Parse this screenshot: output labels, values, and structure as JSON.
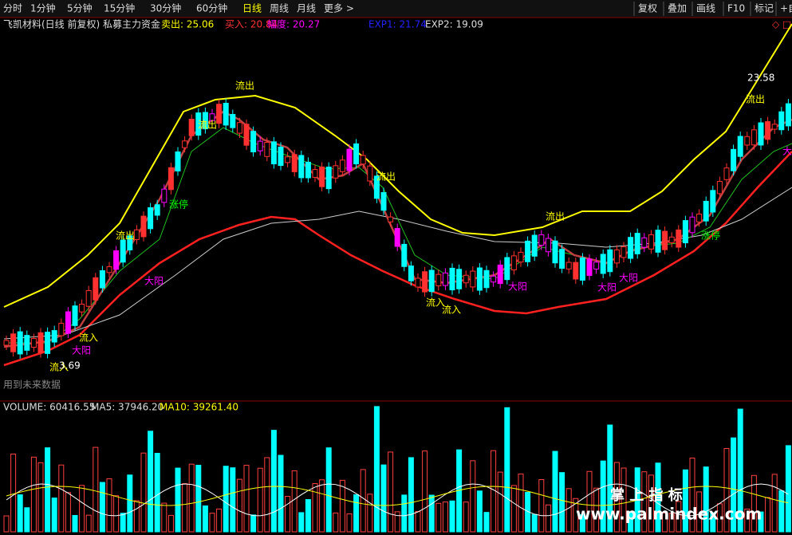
{
  "toolbar": {
    "periods": [
      "分时",
      "1分钟",
      "5分钟",
      "15分钟",
      "30分钟",
      "60分钟",
      "日线",
      "周线",
      "月线",
      "更多 >"
    ],
    "tools": [
      "复权",
      "叠加",
      "画线",
      "F10",
      "标记",
      "+自"
    ]
  },
  "header": {
    "title": "飞凯材料(日线 前复权) 私募主力资金",
    "sell": "卖出: 25.06",
    "buy": "买入: 20.84",
    "range": "幅度: 20.27",
    "exp1": "EXP1: 21.74",
    "exp2": "EXP2: 19.09",
    "marker": "◇ □"
  },
  "annotations": [
    "流出",
    "流出",
    "流出",
    "流出",
    "流出",
    "流出",
    "流入",
    "流入",
    "流入",
    "流入",
    "大阳",
    "大阳",
    "大阳",
    "大阳",
    "大阳",
    "大",
    "涨停",
    "涨停",
    "23.58",
    "3.69"
  ],
  "note": "用到未来数据",
  "volume": {
    "label": "VOLUME: 60416.55",
    "ma5": "MA5: 37946.20",
    "ma10": "MA10: 39261.40"
  },
  "watermark": {
    "title": "掌 上 指 标",
    "url": "www.palmindex.com"
  }
}
